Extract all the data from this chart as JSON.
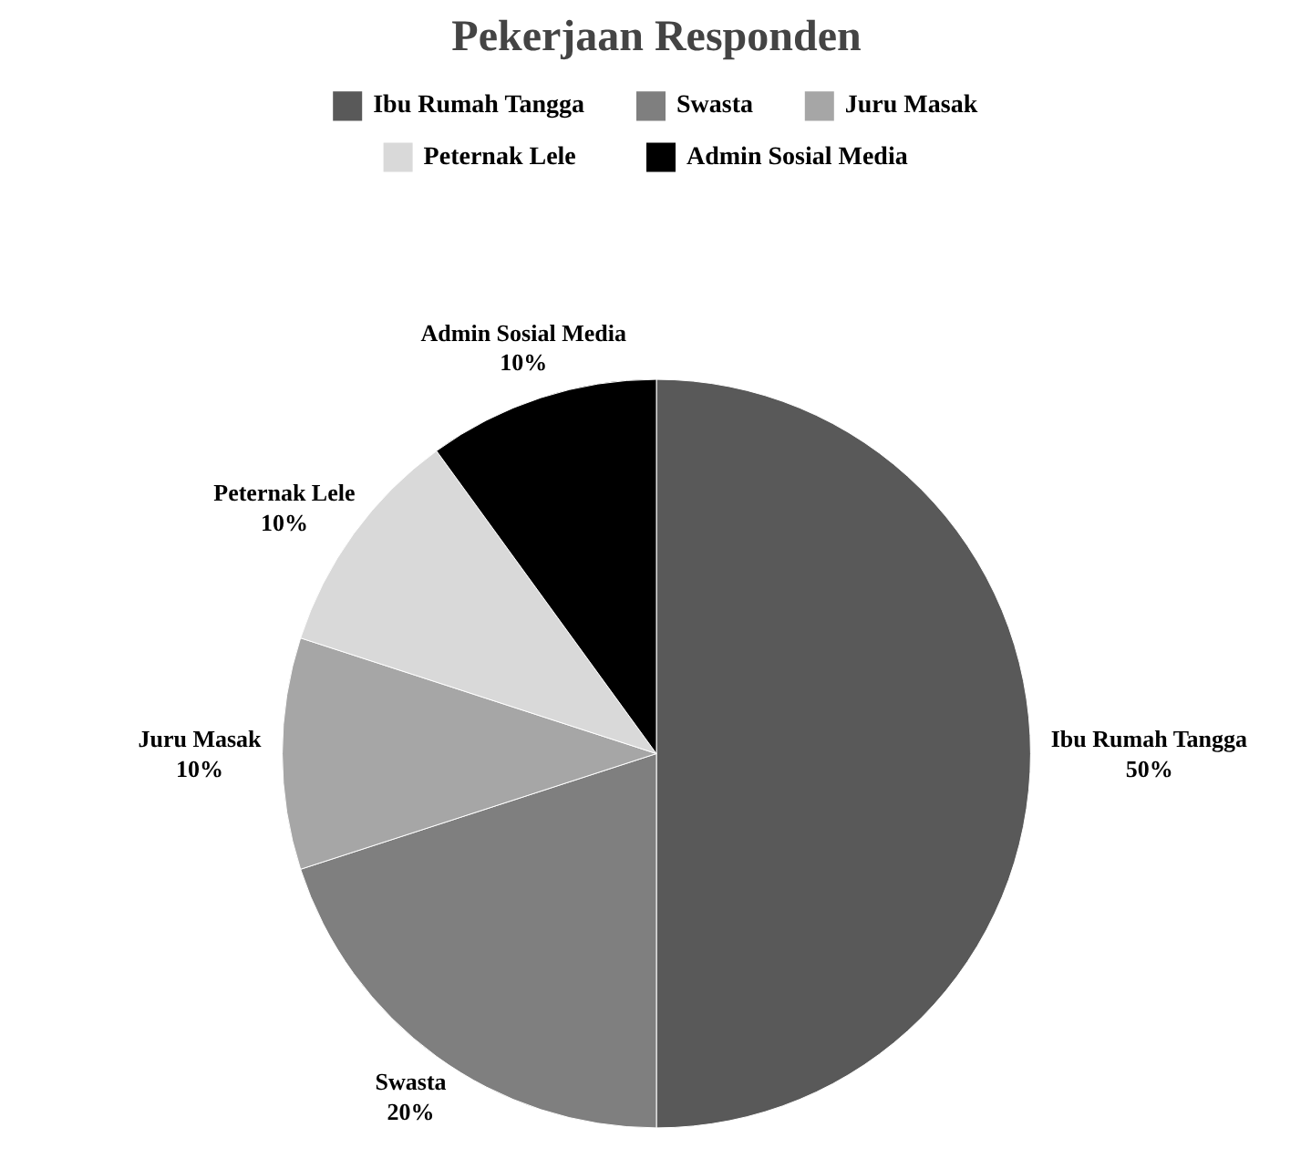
{
  "chart_data": {
    "type": "pie",
    "title": "Pekerjaan Responden",
    "categories": [
      "Ibu Rumah Tangga",
      "Swasta",
      "Juru Masak",
      "Peternak Lele",
      "Admin Sosial Media"
    ],
    "values": [
      50,
      20,
      10,
      10,
      10
    ],
    "value_labels": [
      "50%",
      "20%",
      "10%",
      "10%",
      "10%"
    ],
    "colors": [
      "#595959",
      "#7f7f7f",
      "#a6a6a6",
      "#d9d9d9",
      "#000000"
    ],
    "legend": "top"
  }
}
